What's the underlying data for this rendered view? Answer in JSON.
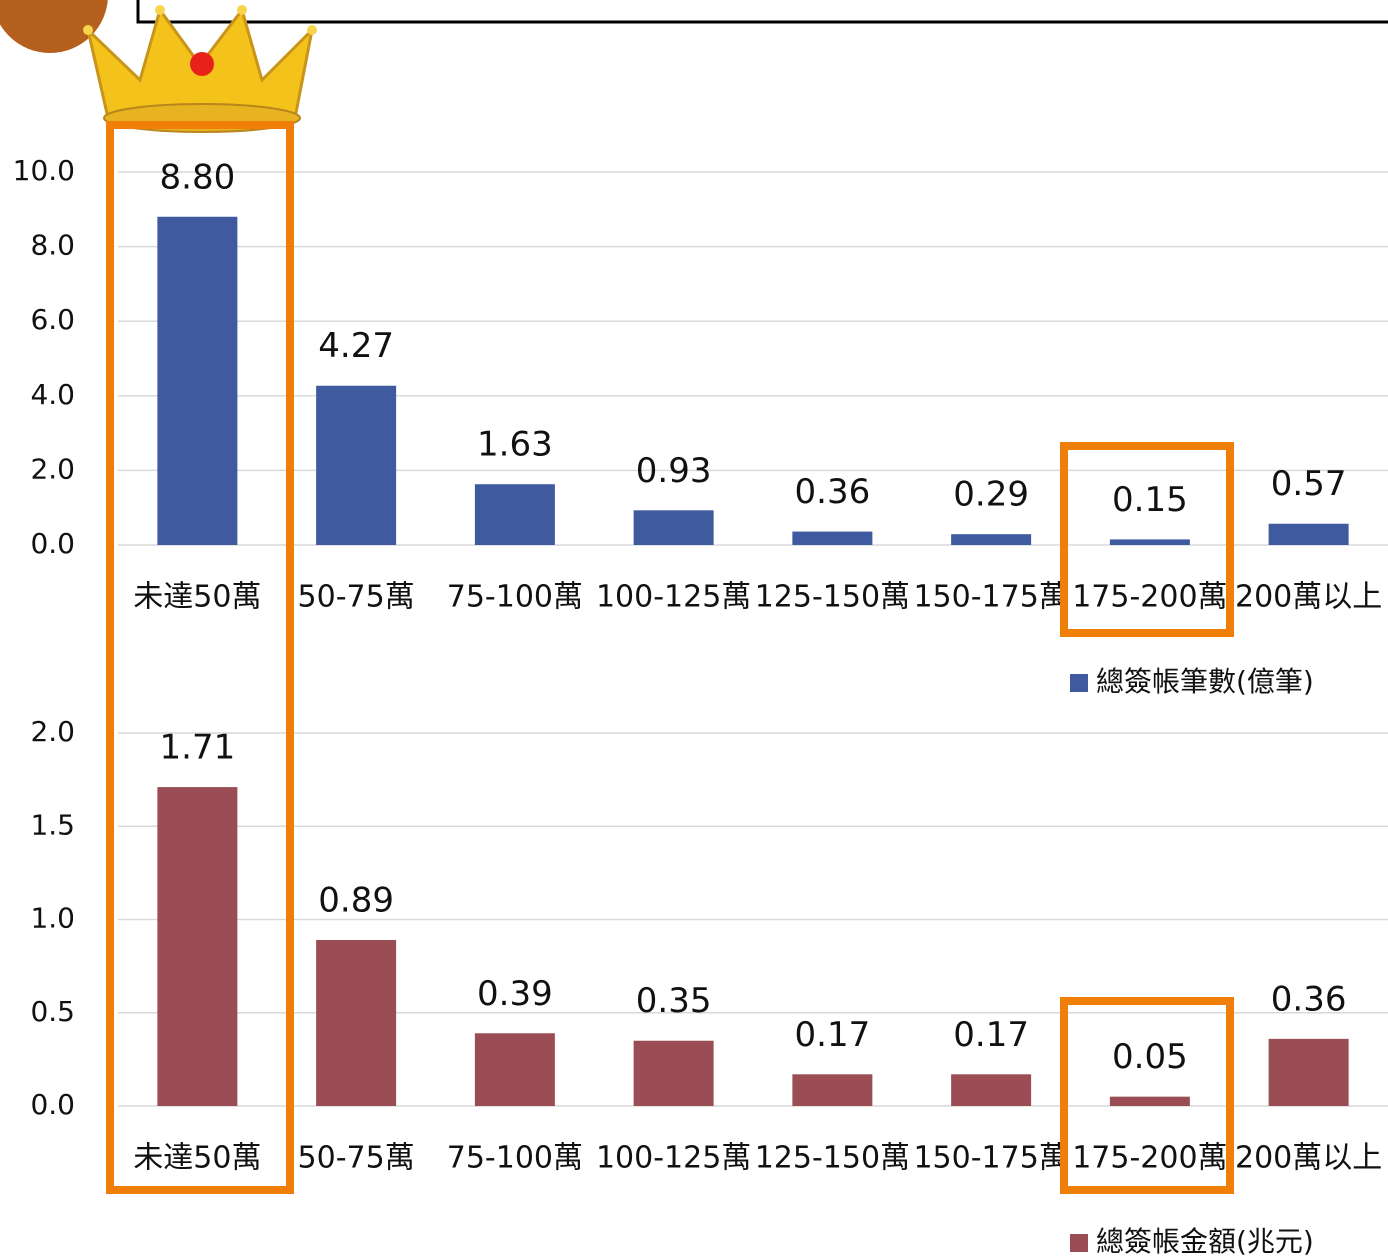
{
  "chart_data": [
    {
      "type": "bar",
      "categories": [
        "未達50萬",
        "50-75萬",
        "75-100萬",
        "100-125萬",
        "125-150萬",
        "150-175萬",
        "175-200萬",
        "200萬以上"
      ],
      "series": [
        {
          "name": "總簽帳筆數(億筆)",
          "color": "#3f5a9e",
          "values": [
            8.8,
            4.27,
            1.63,
            0.93,
            0.36,
            0.29,
            0.15,
            0.57
          ],
          "value_labels": [
            "8.80",
            "4.27",
            "1.63",
            "0.93",
            "0.36",
            "0.29",
            "0.15",
            "0.57"
          ]
        }
      ],
      "ylim": [
        0,
        10
      ],
      "yticks": [
        {
          "value": 0,
          "label": "0.0"
        },
        {
          "value": 2,
          "label": "2.0"
        },
        {
          "value": 4,
          "label": "4.0"
        },
        {
          "value": 6,
          "label": "6.0"
        },
        {
          "value": 8,
          "label": "8.0"
        },
        {
          "value": 10,
          "label": "10.0"
        }
      ],
      "grid": true
    },
    {
      "type": "bar",
      "categories": [
        "未達50萬",
        "50-75萬",
        "75-100萬",
        "100-125萬",
        "125-150萬",
        "150-175萬",
        "175-200萬",
        "200萬以上"
      ],
      "series": [
        {
          "name": "總簽帳金額(兆元)",
          "color": "#9b4d55",
          "values": [
            1.71,
            0.89,
            0.39,
            0.35,
            0.17,
            0.17,
            0.05,
            0.36
          ]
        }
      ],
      "ylim": [
        0,
        2
      ],
      "yticks": [
        {
          "value": 0,
          "label": "0.0"
        },
        {
          "value": 0.5,
          "label": "0.5"
        },
        {
          "value": 1,
          "label": "1.0"
        },
        {
          "value": 1.5,
          "label": "1.5"
        },
        {
          "value": 2,
          "label": "2.0"
        }
      ],
      "grid": true
    }
  ]
}
